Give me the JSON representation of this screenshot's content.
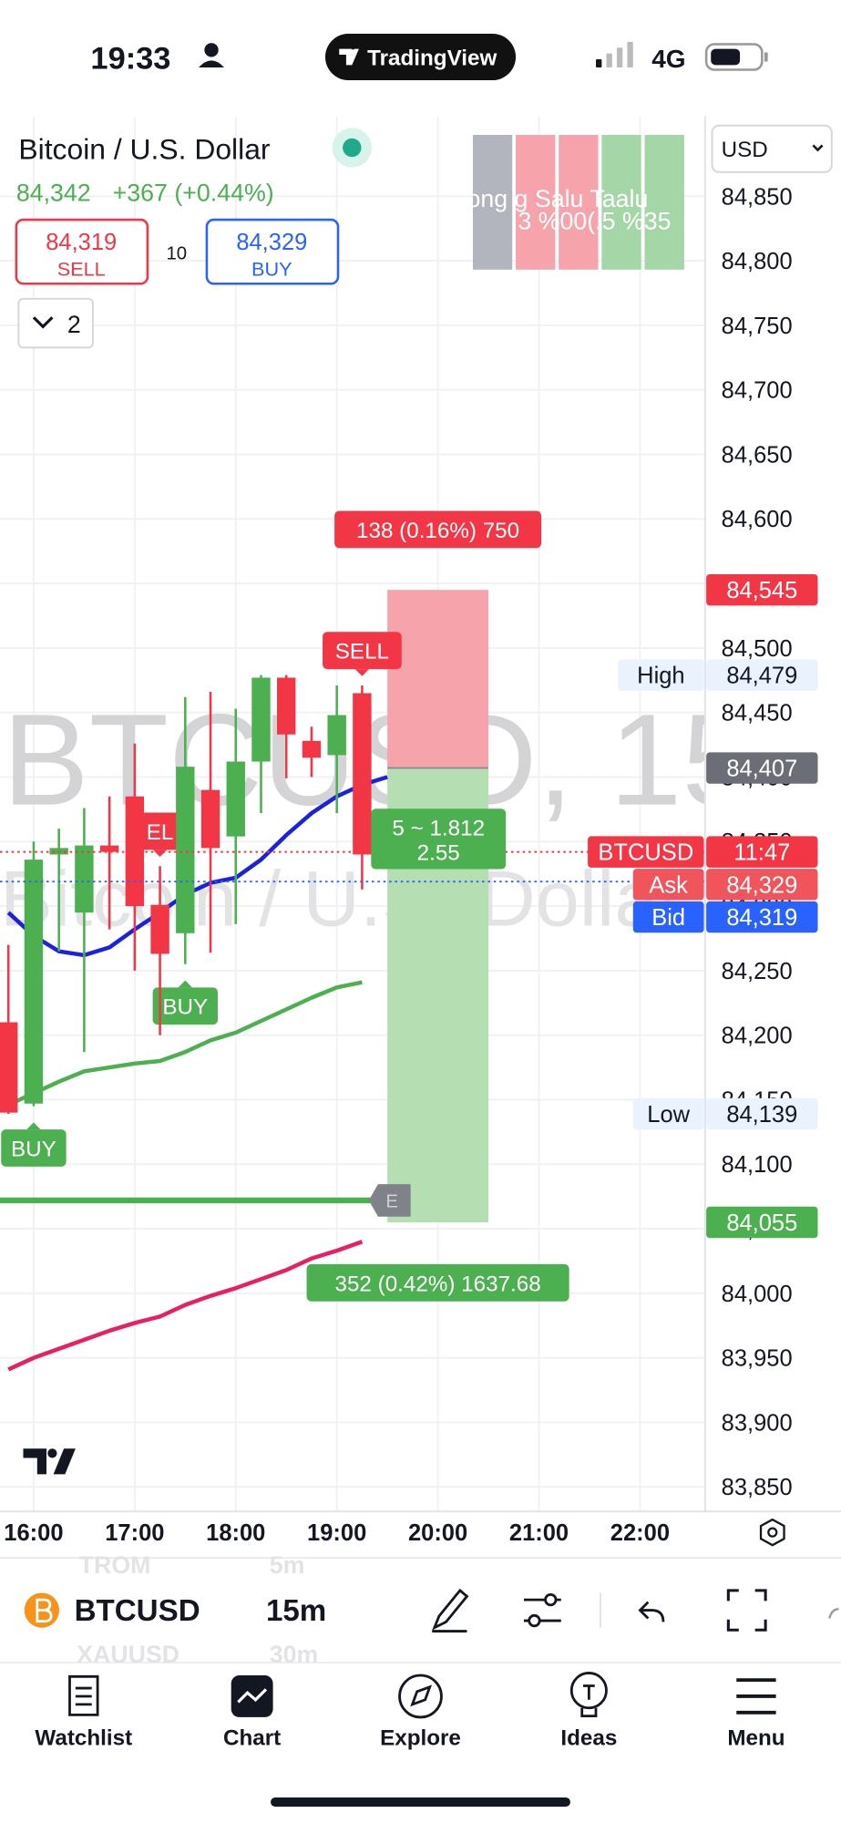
{
  "status_bar": {
    "time": "19:33",
    "app": "TradingView",
    "network": "4G"
  },
  "header": {
    "symbol_name": "Bitcoin / U.S. Dollar",
    "last": "84,342",
    "change": "+367 (+0.44%)",
    "sell_price": "84,319",
    "sell_label": "SELL",
    "spread": "10",
    "buy_price": "84,329",
    "buy_label": "BUY",
    "indicators_count": "2",
    "currency": "USD"
  },
  "widget": {
    "row1": "ong g Salu Taalu",
    "row2": ".3 %00(.5 %35"
  },
  "watermark": {
    "symbol": "BTCUSD, 15",
    "description": "Bitcoin / U.S. Dollar"
  },
  "chart_data": {
    "type": "candlestick",
    "x": [
      15.75,
      16,
      16.25,
      16.5,
      16.75,
      17,
      17.25,
      17.5,
      17.75,
      18,
      18.25,
      18.5,
      18.75,
      19,
      19.25,
      19.5
    ],
    "open": [
      84210,
      84147,
      84340,
      84295,
      84347,
      84385,
      84301,
      84279,
      84390,
      84354,
      84412,
      84477,
      84428,
      84417,
      84465,
      84366
    ],
    "high": [
      84270,
      84350,
      84360,
      84376,
      84385,
      84426,
      84331,
      84462,
      84466,
      84453,
      84479,
      84479,
      84439,
      84471,
      84471,
      84372
    ],
    "low": [
      84139,
      84145,
      84265,
      84187,
      84282,
      84250,
      84200,
      84255,
      84264,
      84286,
      84372,
      84399,
      84400,
      84372,
      84313,
      84336
    ],
    "close": [
      84140,
      84336,
      84345,
      84347,
      84342,
      84300,
      84263,
      84408,
      84345,
      84412,
      84477,
      84433,
      84415,
      84448,
      84340,
      84342
    ],
    "up_color": "#4caf50",
    "down_color": "#f23645",
    "series": [
      {
        "color": "#1a22e0",
        "values": [
          84295,
          84277,
          84265,
          84262,
          84268,
          84282,
          84295,
          84309,
          84318,
          84322,
          84336,
          84355,
          84372,
          84385,
          84394,
          84400
        ]
      },
      {
        "color": "#4caf50",
        "values": [
          84146,
          84155,
          84164,
          84172,
          84175,
          84178,
          84180,
          84187,
          84196,
          84202,
          84211,
          84220,
          84229,
          84237,
          84241,
          null
        ]
      },
      {
        "color": "#e91e63",
        "values": [
          83941,
          83950,
          83957,
          83964,
          83971,
          83977,
          83982,
          83991,
          83998,
          84004,
          84011,
          84018,
          84027,
          84033,
          84040,
          null
        ]
      }
    ],
    "hlines": [
      {
        "value": 84072,
        "color": "#4caf50",
        "label": "E"
      }
    ],
    "price_lines": [
      {
        "value": 84342,
        "color": "#f23645"
      },
      {
        "value": 84319,
        "color": "#2962ff"
      }
    ],
    "markers": [
      {
        "x": 16,
        "label": "BUY",
        "position": "below",
        "color": "#4caf50"
      },
      {
        "x": 17.25,
        "label": "EL",
        "position": "above",
        "color": "#f23645"
      },
      {
        "x": 17.5,
        "label": "BUY",
        "position": "below",
        "color": "#4caf50"
      },
      {
        "x": 19.25,
        "label": "SELL",
        "position": "above",
        "color": "#f23645"
      }
    ],
    "position": {
      "x": [
        19.5,
        20.5
      ],
      "stop": 84545,
      "entry": 84407,
      "target": 84055,
      "stop_label": "138 (0.16%) 750",
      "target_label": "352 (0.42%) 1637.68",
      "ratio_label": "5 ~ 1.812",
      "ratio_value_label": "2.55"
    },
    "price_tags": [
      {
        "value": 84545,
        "label": "84,545",
        "color": "#f23645",
        "text_color": "#ffffff"
      },
      {
        "value": 84479,
        "label": "84,479",
        "name": "High",
        "color": "#eaf2fd",
        "text_color": "#131722"
      },
      {
        "value": 84407,
        "label": "84,407",
        "color": "#6b6e76",
        "text_color": "#ffffff"
      },
      {
        "value": 84342,
        "name": "BTCUSD",
        "text": "11:47",
        "color": "#f23645",
        "text_color": "#ffffff"
      },
      {
        "value": 84329,
        "label": "84,329",
        "name": "Ask",
        "color": "#f2545b",
        "text_color": "#ffffff"
      },
      {
        "value": 84319,
        "label": "84,319",
        "name": "Bid",
        "color": "#2962ff",
        "text_color": "#ffffff"
      },
      {
        "value": 84139,
        "label": "84,139",
        "name": "Low",
        "color": "#eaf2fd",
        "text_color": "#131722"
      },
      {
        "value": 84055,
        "label": "84,055",
        "color": "#4caf50",
        "text_color": "#ffffff"
      }
    ],
    "xlim": [
      15.667,
      22.644
    ],
    "ylim": [
      83831,
      84912
    ],
    "xticks": [
      {
        "value": 16,
        "label": "16:00"
      },
      {
        "value": 17,
        "label": "17:00"
      },
      {
        "value": 18,
        "label": "18:00"
      },
      {
        "value": 19,
        "label": "19:00"
      },
      {
        "value": 20,
        "label": "20:00"
      },
      {
        "value": 21,
        "label": "21:00"
      },
      {
        "value": 22,
        "label": "22:00"
      }
    ],
    "yticks": [
      {
        "value": 83850,
        "label": "83,850"
      },
      {
        "value": 83900,
        "label": "83,900"
      },
      {
        "value": 83950,
        "label": "83,950"
      },
      {
        "value": 84000,
        "label": "84,000"
      },
      {
        "value": 84050,
        "label": "84,050"
      },
      {
        "value": 84100,
        "label": "84,100"
      },
      {
        "value": 84150,
        "label": "84,150"
      },
      {
        "value": 84200,
        "label": "84,200"
      },
      {
        "value": 84250,
        "label": "84,250"
      },
      {
        "value": 84300,
        "label": "84,300"
      },
      {
        "value": 84350,
        "label": "84,350"
      },
      {
        "value": 84400,
        "label": "84,400"
      },
      {
        "value": 84450,
        "label": "84,450"
      },
      {
        "value": 84500,
        "label": "84,500"
      },
      {
        "value": 84550,
        "label": "84,550"
      },
      {
        "value": 84600,
        "label": "84,600"
      },
      {
        "value": 84650,
        "label": "84,650"
      },
      {
        "value": 84700,
        "label": "84,700"
      },
      {
        "value": 84750,
        "label": "84,750"
      },
      {
        "value": 84800,
        "label": "84,800"
      },
      {
        "value": 84850,
        "label": "84,850"
      }
    ],
    "grid": true
  },
  "toolbar": {
    "symbol": "BTCUSD",
    "interval": "15m",
    "prev_symbol": "TROM",
    "prev_interval": "5m",
    "next_symbol": "XAUUSD",
    "next_interval": "30m"
  },
  "tab_bar": {
    "tabs": [
      "Watchlist",
      "Chart",
      "Explore",
      "Ideas",
      "Menu"
    ]
  }
}
